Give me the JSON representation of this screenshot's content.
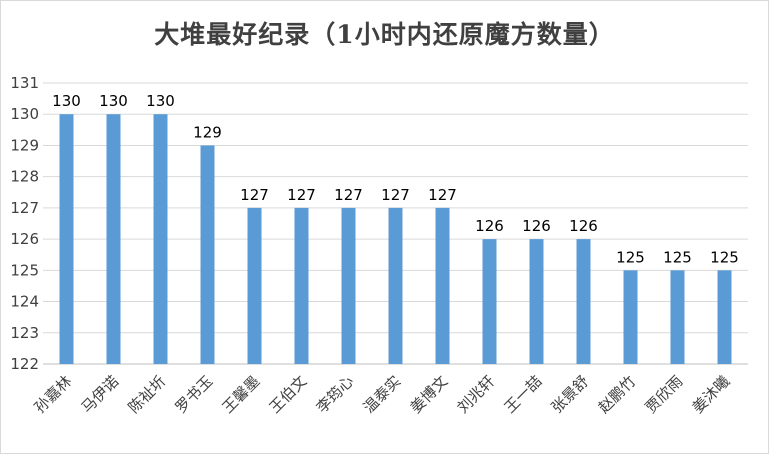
{
  "chart_data": {
    "type": "bar",
    "title": "大堆最好纪录（1小时内还原魔方数量）",
    "xlabel": "",
    "ylabel": "",
    "categories": [
      "孙嘉林",
      "马伊诺",
      "陈祉圻",
      "罗书玉",
      "王馨墨",
      "王伯文",
      "李筠心",
      "温泰实",
      "姜博文",
      "刘兆轩",
      "王一喆",
      "张景舒",
      "赵鹏竹",
      "贾欣雨",
      "姜沐曦"
    ],
    "values": [
      130,
      130,
      130,
      129,
      127,
      127,
      127,
      127,
      127,
      126,
      126,
      126,
      125,
      125,
      125
    ],
    "y_ticks": [
      "122",
      "123",
      "124",
      "125",
      "126",
      "127",
      "128",
      "129",
      "130",
      "131"
    ],
    "ylim": [
      122,
      131
    ],
    "grid": true,
    "legend": "none",
    "bar_color": "#5b9bd5",
    "grid_color": "#d9d9d9"
  }
}
